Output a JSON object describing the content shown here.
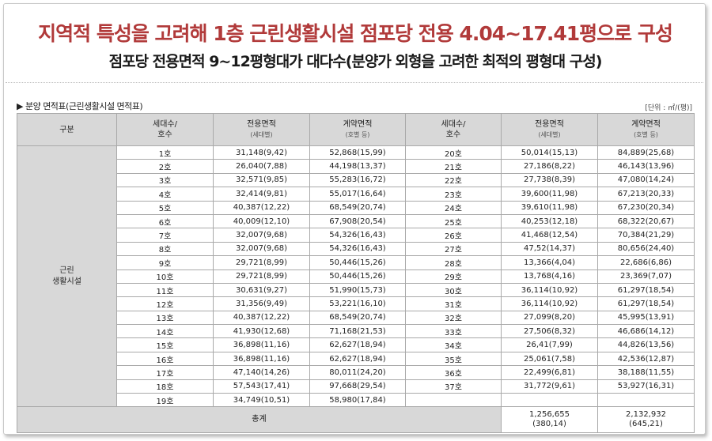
{
  "title": "지역적 특성을 고려해 1층 근린생활시설 점포당 전용 4.04~17.41평으로 구성",
  "subtitle": "점포당 전용면적 9~12평형대가 대다수(분양가 외형을 고려한 최적의 평형대 구성)",
  "section_title": "▶ 분양 면적표(근린생활시설 면적표)",
  "unit": "[단위 : ㎡/(평)]",
  "headers": {
    "category": "구분",
    "units_main": "세대수/",
    "units_sub": "호수",
    "exclusive_main": "전용면적",
    "exclusive_sub": "(세대별)",
    "contract_main": "계약면적",
    "contract_sub": "(호별 등)"
  },
  "category_line1": "근린",
  "category_line2": "생활시설",
  "left_rows": [
    {
      "unit": "1호",
      "exclusive": "31,148(9,42)",
      "contract": "52,868(15,99)"
    },
    {
      "unit": "2호",
      "exclusive": "26,040(7,88)",
      "contract": "44,198(13,37)"
    },
    {
      "unit": "3호",
      "exclusive": "32,571(9,85)",
      "contract": "55,283(16,72)"
    },
    {
      "unit": "4호",
      "exclusive": "32,414(9,81)",
      "contract": "55,017(16,64)"
    },
    {
      "unit": "5호",
      "exclusive": "40,387(12,22)",
      "contract": "68,549(20,74)"
    },
    {
      "unit": "6호",
      "exclusive": "40,009(12,10)",
      "contract": "67,908(20,54)"
    },
    {
      "unit": "7호",
      "exclusive": "32,007(9,68)",
      "contract": "54,326(16,43)"
    },
    {
      "unit": "8호",
      "exclusive": "32,007(9,68)",
      "contract": "54,326(16,43)"
    },
    {
      "unit": "9호",
      "exclusive": "29,721(8,99)",
      "contract": "50,446(15,26)"
    },
    {
      "unit": "10호",
      "exclusive": "29,721(8,99)",
      "contract": "50,446(15,26)"
    },
    {
      "unit": "11호",
      "exclusive": "30,631(9,27)",
      "contract": "51,990(15,73)"
    },
    {
      "unit": "12호",
      "exclusive": "31,356(9,49)",
      "contract": "53,221(16,10)"
    },
    {
      "unit": "13호",
      "exclusive": "40,387(12,22)",
      "contract": "68,549(20,74)"
    },
    {
      "unit": "14호",
      "exclusive": "41,930(12,68)",
      "contract": "71,168(21,53)"
    },
    {
      "unit": "15호",
      "exclusive": "36,898(11,16)",
      "contract": "62,627(18,94)"
    },
    {
      "unit": "16호",
      "exclusive": "36,898(11,16)",
      "contract": "62,627(18,94)"
    },
    {
      "unit": "17호",
      "exclusive": "47,140(14,26)",
      "contract": "80,011(24,20)"
    },
    {
      "unit": "18호",
      "exclusive": "57,543(17,41)",
      "contract": "97,668(29,54)"
    },
    {
      "unit": "19호",
      "exclusive": "34,749(10,51)",
      "contract": "58,980(17,84)"
    }
  ],
  "right_rows": [
    {
      "unit": "20호",
      "exclusive": "50,014(15,13)",
      "contract": "84,889(25,68)"
    },
    {
      "unit": "21호",
      "exclusive": "27,186(8,22)",
      "contract": "46,143(13,96)"
    },
    {
      "unit": "22호",
      "exclusive": "27,738(8,39)",
      "contract": "47,080(14,24)"
    },
    {
      "unit": "23호",
      "exclusive": "39,600(11,98)",
      "contract": "67,213(20,33)"
    },
    {
      "unit": "24호",
      "exclusive": "39,610(11,98)",
      "contract": "67,230(20,34)"
    },
    {
      "unit": "25호",
      "exclusive": "40,253(12,18)",
      "contract": "68,322(20,67)"
    },
    {
      "unit": "26호",
      "exclusive": "41,468(12,54)",
      "contract": "70,384(21,29)"
    },
    {
      "unit": "27호",
      "exclusive": "47,52(14,37)",
      "contract": "80,656(24,40)"
    },
    {
      "unit": "28호",
      "exclusive": "13,366(4,04)",
      "contract": "22,686(6,86)"
    },
    {
      "unit": "29호",
      "exclusive": "13,768(4,16)",
      "contract": "23,369(7,07)"
    },
    {
      "unit": "30호",
      "exclusive": "36,114(10,92)",
      "contract": "61,297(18,54)"
    },
    {
      "unit": "31호",
      "exclusive": "36,114(10,92)",
      "contract": "61,297(18,54)"
    },
    {
      "unit": "32호",
      "exclusive": "27,099(8,20)",
      "contract": "45,995(13,91)"
    },
    {
      "unit": "33호",
      "exclusive": "27,506(8,32)",
      "contract": "46,686(14,12)"
    },
    {
      "unit": "34호",
      "exclusive": "26,41(7,99)",
      "contract": "44,826(13,56)"
    },
    {
      "unit": "35호",
      "exclusive": "25,061(7,58)",
      "contract": "42,536(12,87)"
    },
    {
      "unit": "36호",
      "exclusive": "22,499(6,81)",
      "contract": "38,188(11,55)"
    },
    {
      "unit": "37호",
      "exclusive": "31,772(9,61)",
      "contract": "53,927(16,31)"
    },
    {
      "unit": "",
      "exclusive": "",
      "contract": ""
    }
  ],
  "total": {
    "label": "총계",
    "exclusive_line1": "1,256,655",
    "exclusive_line2": "(380,14)",
    "contract_line1": "2,132,932",
    "contract_line2": "(645,21)"
  }
}
